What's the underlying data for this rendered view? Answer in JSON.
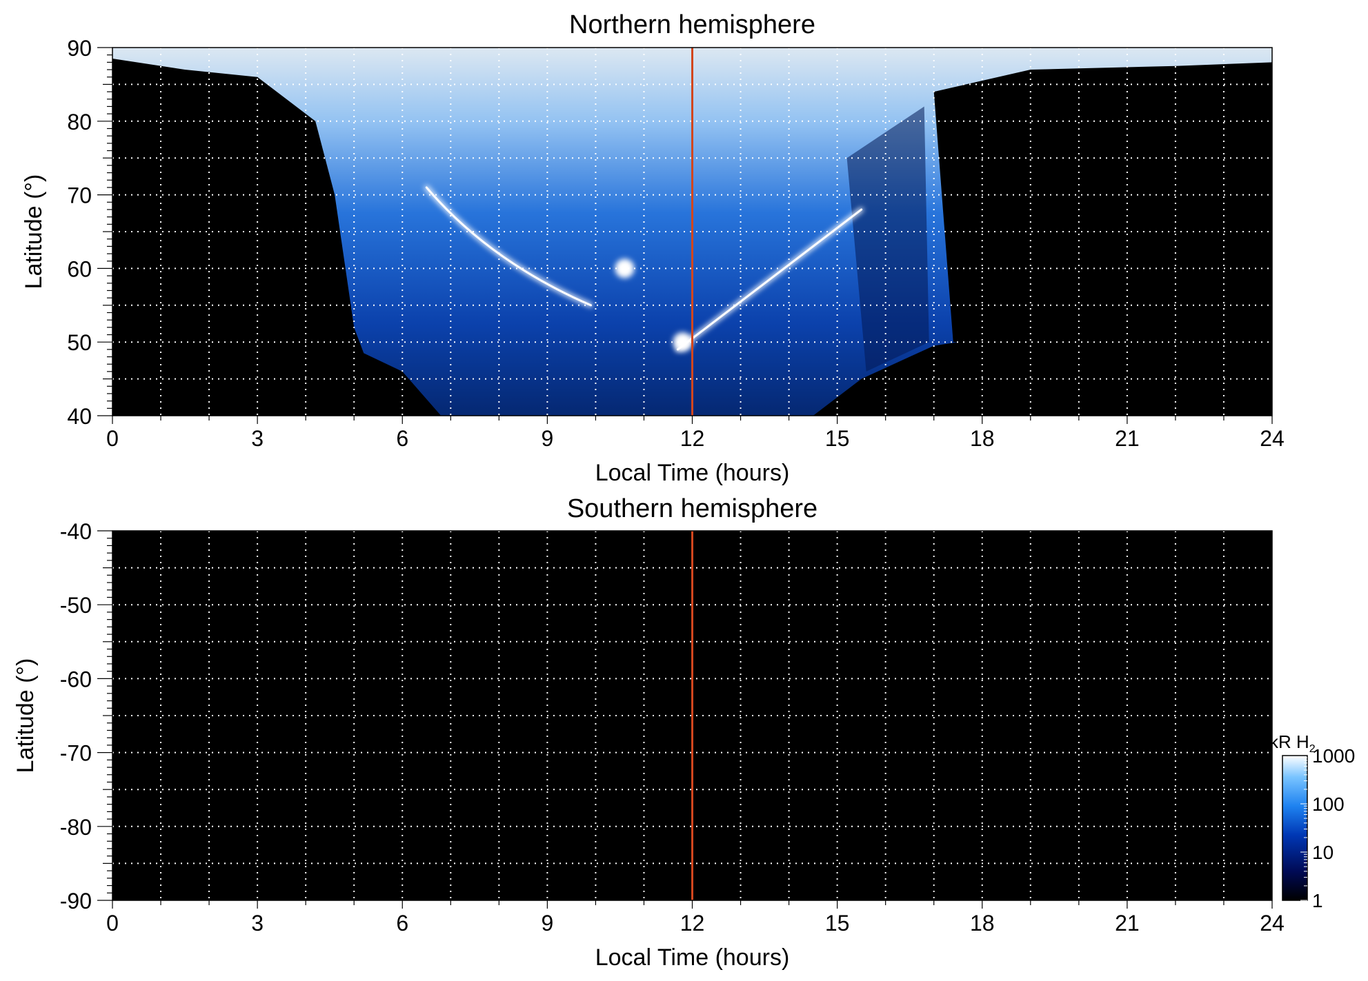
{
  "chart_data": [
    {
      "type": "heatmap",
      "title": "Northern hemisphere",
      "xlabel": "Local Time (hours)",
      "ylabel": "Latitude (°)",
      "xlim": [
        0,
        24
      ],
      "ylim": [
        40,
        90
      ],
      "x_ticks": [
        0,
        3,
        6,
        9,
        12,
        15,
        18,
        21,
        24
      ],
      "y_ticks": [
        40,
        50,
        60,
        70,
        80,
        90
      ],
      "grid": true,
      "marker_line_x": 12,
      "marker_line_color": "#d2461e",
      "emission_band_lower_latitude_by_local_time": {
        "x": [
          5.0,
          5.2,
          6.0,
          6.8,
          7.5,
          9.0,
          10.5,
          12.0,
          13.5,
          14.5,
          15.5,
          16.5,
          17.0,
          17.5
        ],
        "lat": [
          52,
          48.5,
          46,
          40,
          40,
          40,
          40,
          40,
          40,
          40,
          45,
          48,
          49.5,
          50
        ]
      },
      "bright_features": [
        {
          "label": "arc",
          "from": [
            6.5,
            71
          ],
          "to": [
            9.9,
            55
          ]
        },
        {
          "label": "arc",
          "from": [
            11.7,
            49
          ],
          "to": [
            15.5,
            68
          ]
        },
        {
          "label": "spot",
          "at": [
            10.6,
            60
          ]
        },
        {
          "label": "spot",
          "at": [
            11.8,
            50
          ]
        }
      ]
    },
    {
      "type": "heatmap",
      "title": "Southern hemisphere",
      "xlabel": "Local Time (hours)",
      "ylabel": "Latitude (°)",
      "xlim": [
        0,
        24
      ],
      "ylim": [
        -90,
        -40
      ],
      "x_ticks": [
        0,
        3,
        6,
        9,
        12,
        15,
        18,
        21,
        24
      ],
      "y_ticks": [
        -40,
        -50,
        -60,
        -70,
        -80,
        -90
      ],
      "grid": true,
      "marker_line_x": 12,
      "marker_line_color": "#d2461e",
      "emission": "none"
    }
  ],
  "colorbar": {
    "label_main": "kR H",
    "label_sub": "2",
    "scale": "log",
    "range": [
      1,
      1000
    ],
    "ticks": [
      "1000",
      "100",
      "10",
      "1"
    ],
    "colors": [
      "#000000",
      "#000a55",
      "#0037b4",
      "#1e82f0",
      "#78c3ff",
      "#ffffff"
    ]
  }
}
